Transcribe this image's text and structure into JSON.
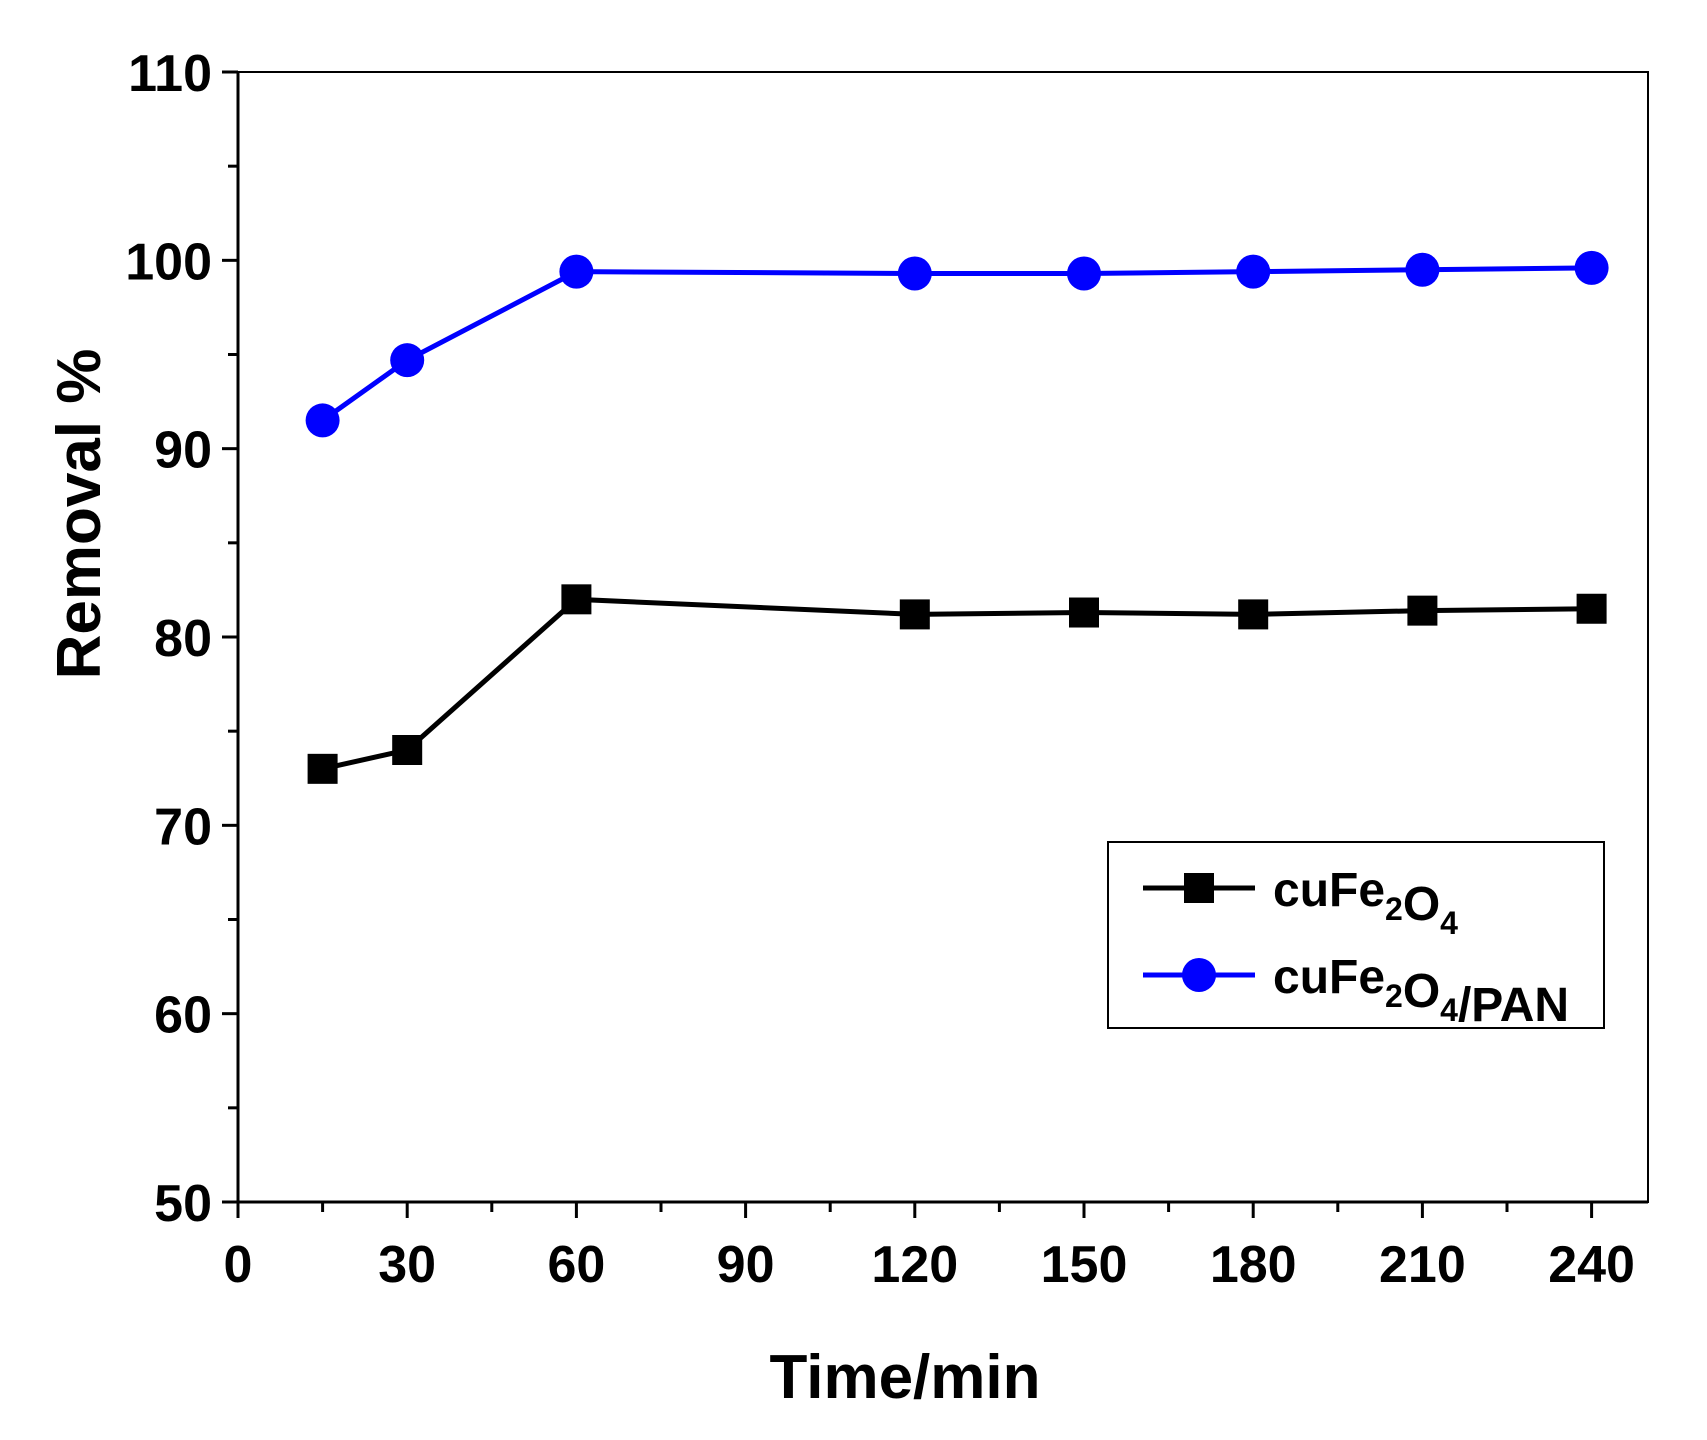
{
  "chart_data": {
    "type": "line",
    "title": "",
    "xlabel": "Time/min",
    "ylabel": "Removal %",
    "xlim": [
      0,
      250
    ],
    "ylim": [
      50,
      110
    ],
    "x_ticks": [
      0,
      30,
      60,
      90,
      120,
      150,
      180,
      210,
      240
    ],
    "x_minor_ticks": [
      15,
      45,
      75,
      105,
      135,
      165,
      195,
      225
    ],
    "y_ticks": [
      50,
      60,
      70,
      80,
      90,
      100,
      110
    ],
    "y_minor_ticks": [
      55,
      65,
      75,
      85,
      95,
      105
    ],
    "grid": false,
    "legend_position": "lower-right",
    "series": [
      {
        "name": "cuFe2O4",
        "label_parts": [
          [
            "cuFe",
            ""
          ],
          [
            "2",
            "sub"
          ],
          [
            "O",
            ""
          ],
          [
            "4",
            "sub"
          ]
        ],
        "color": "#000000",
        "marker": "square",
        "x": [
          15,
          30,
          60,
          120,
          150,
          180,
          210,
          240
        ],
        "y": [
          73,
          74,
          82,
          81.2,
          81.3,
          81.2,
          81.4,
          81.5
        ]
      },
      {
        "name": "cuFe2O4/PAN",
        "label_parts": [
          [
            "cuFe",
            ""
          ],
          [
            "2",
            "sub"
          ],
          [
            "O",
            ""
          ],
          [
            "4",
            "sub"
          ],
          [
            "/PAN",
            ""
          ]
        ],
        "color": "#0000ff",
        "marker": "circle",
        "x": [
          15,
          30,
          60,
          120,
          150,
          180,
          210,
          240
        ],
        "y": [
          91.5,
          94.7,
          99.4,
          99.3,
          99.3,
          99.4,
          99.5,
          99.6
        ]
      }
    ]
  }
}
